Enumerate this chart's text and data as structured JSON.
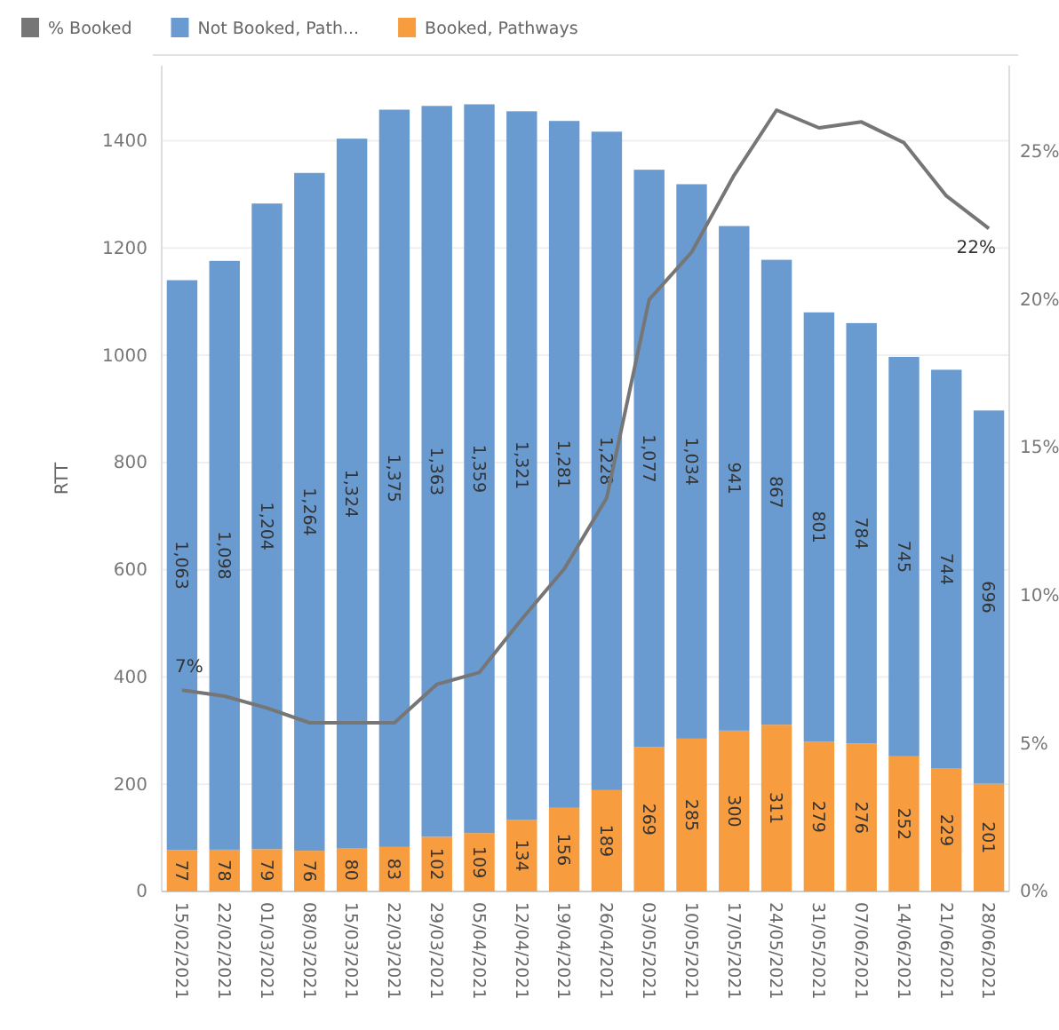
{
  "chart_data": {
    "type": "bar",
    "stacked": true,
    "ylabel": "RTT",
    "categories": [
      "15/02/2021",
      "22/02/2021",
      "01/03/2021",
      "08/03/2021",
      "15/03/2021",
      "22/03/2021",
      "29/03/2021",
      "05/04/2021",
      "12/04/2021",
      "19/04/2021",
      "26/04/2021",
      "03/05/2021",
      "10/05/2021",
      "17/05/2021",
      "24/05/2021",
      "31/05/2021",
      "07/06/2021",
      "14/06/2021",
      "21/06/2021",
      "28/06/2021"
    ],
    "series": [
      {
        "name": "% Booked",
        "type": "line",
        "axis": "y2",
        "color": "#767676",
        "values": [
          6.8,
          6.6,
          6.2,
          5.7,
          5.7,
          5.7,
          7.0,
          7.4,
          9.2,
          10.9,
          13.3,
          20.0,
          21.6,
          24.2,
          26.4,
          25.8,
          26.0,
          25.3,
          23.5,
          22.4
        ],
        "value_labels": [
          "7%",
          null,
          null,
          null,
          null,
          null,
          null,
          null,
          null,
          null,
          null,
          null,
          null,
          null,
          null,
          null,
          null,
          null,
          null,
          "22%"
        ]
      },
      {
        "name": "Booked, Pathways",
        "color": "#f89d3f",
        "values": [
          77,
          78,
          79,
          76,
          80,
          83,
          102,
          109,
          134,
          156,
          189,
          269,
          285,
          300,
          311,
          279,
          276,
          252,
          229,
          201
        ],
        "value_labels": [
          "77",
          "78",
          "79",
          "76",
          "80",
          "83",
          "102",
          "109",
          "134",
          "156",
          "189",
          "269",
          "285",
          "300",
          "311",
          "279",
          "276",
          "252",
          "229",
          "201"
        ]
      },
      {
        "name": "Not Booked, Path...",
        "color": "#6a9bd0",
        "values": [
          1063,
          1098,
          1204,
          1264,
          1324,
          1375,
          1363,
          1359,
          1321,
          1281,
          1228,
          1077,
          1034,
          941,
          867,
          801,
          784,
          745,
          744,
          696
        ],
        "value_labels": [
          "1,063",
          "1,098",
          "1,204",
          "1,264",
          "1,324",
          "1,375",
          "1,363",
          "1,359",
          "1,321",
          "1,281",
          "1,228",
          "1,077",
          "1,034",
          "941",
          "867",
          "801",
          "784",
          "745",
          "744",
          "696"
        ]
      }
    ],
    "ylim": [
      0,
      1540
    ],
    "yticks": [
      0,
      200,
      400,
      600,
      800,
      1000,
      1200,
      1400
    ],
    "y2lim": [
      0,
      27.9
    ],
    "y2ticks": [
      {
        "value": 0,
        "label": "0%"
      },
      {
        "value": 5,
        "label": "5%"
      },
      {
        "value": 10,
        "label": "10%"
      },
      {
        "value": 15,
        "label": "15%"
      },
      {
        "value": 20,
        "label": "20%"
      },
      {
        "value": 25,
        "label": "25%"
      }
    ],
    "grid": "y",
    "legend": "top left"
  }
}
